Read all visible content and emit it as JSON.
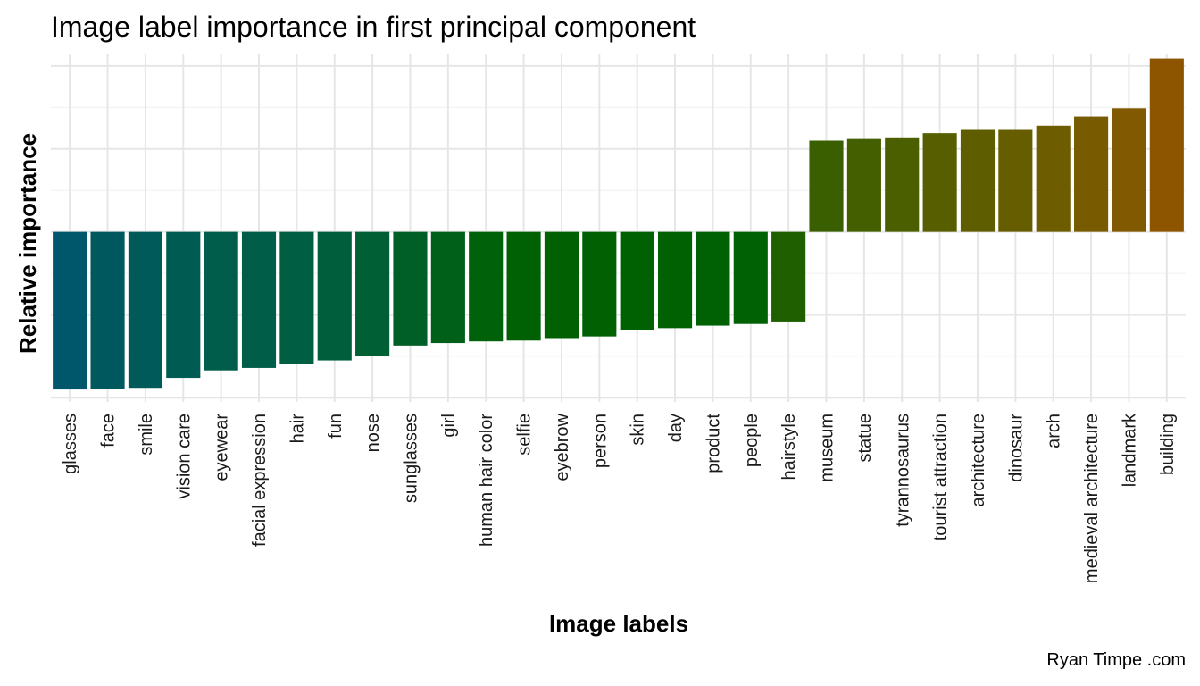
{
  "chart_data": {
    "type": "bar",
    "title": "Image label importance in first principal component",
    "xlabel": "Image labels",
    "ylabel": "Relative importance",
    "caption": "Ryan Timpe .com",
    "ylim": [
      -0.205,
      0.215
    ],
    "y_tick_labels_visible": false,
    "grid": true,
    "legend": "none",
    "categories": [
      "glasses",
      "face",
      "smile",
      "vision care",
      "eyewear",
      "facial expression",
      "hair",
      "fun",
      "nose",
      "sunglasses",
      "girl",
      "human hair color",
      "selfie",
      "eyebrow",
      "person",
      "skin",
      "day",
      "product",
      "people",
      "hairstyle",
      "museum",
      "statue",
      "tyrannosaurus",
      "tourist attraction",
      "architecture",
      "dinosaur",
      "arch",
      "medieval architecture",
      "landmark",
      "building"
    ],
    "values": [
      -0.19,
      -0.189,
      -0.188,
      -0.176,
      -0.167,
      -0.164,
      -0.159,
      -0.155,
      -0.149,
      -0.137,
      -0.134,
      -0.132,
      -0.131,
      -0.128,
      -0.126,
      -0.118,
      -0.116,
      -0.113,
      -0.111,
      -0.108,
      0.11,
      0.112,
      0.114,
      0.119,
      0.124,
      0.124,
      0.128,
      0.139,
      0.149,
      0.209
    ],
    "colors": [
      "#00566A",
      "#00585F",
      "#005A59",
      "#005B52",
      "#005C4B",
      "#005D47",
      "#005E42",
      "#005E3D",
      "#005F35",
      "#005F27",
      "#00601A",
      "#00610B",
      "#006104",
      "#006002",
      "#006002",
      "#006102",
      "#006102",
      "#006104",
      "#006104",
      "#1F5F00",
      "#3A5F00",
      "#435F00",
      "#4C5F00",
      "#565E00",
      "#5E5E00",
      "#665D00",
      "#6E5D00",
      "#785A00",
      "#805900",
      "#8E5500"
    ]
  }
}
